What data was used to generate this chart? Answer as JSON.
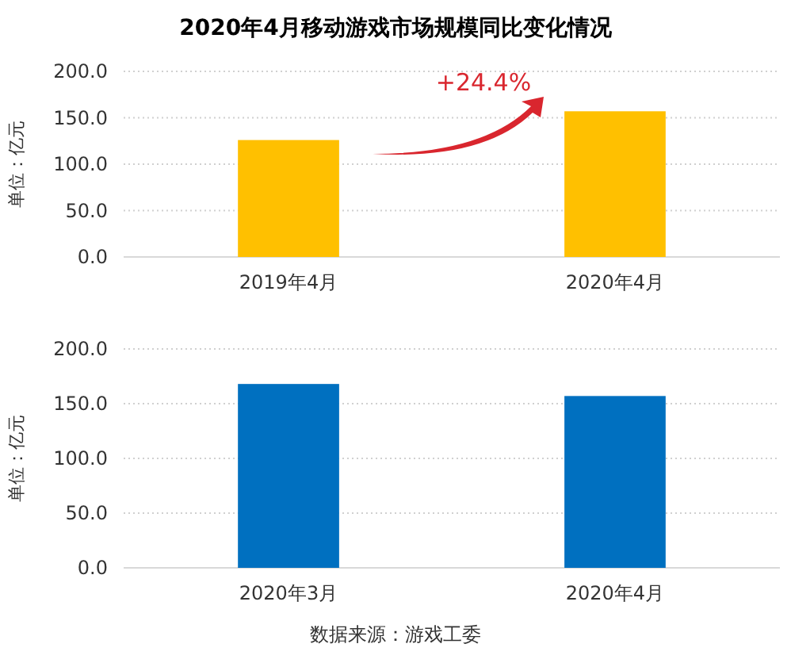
{
  "chart_data": [
    {
      "type": "bar",
      "title": "2020年4月移动游戏市场规模同比变化情况",
      "ylabel": "单位：亿元",
      "categories": [
        "2019年4月",
        "2020年4月"
      ],
      "values": [
        126,
        157
      ],
      "color": "#ffc000",
      "ylim": [
        0,
        200
      ],
      "yticks": [
        {
          "value": 0,
          "label": "0.0"
        },
        {
          "value": 50,
          "label": "50.0"
        },
        {
          "value": 100,
          "label": "100.0"
        },
        {
          "value": 150,
          "label": "150.0"
        },
        {
          "value": 200,
          "label": "200.0"
        }
      ],
      "grid": "y",
      "annotations": [
        "+24.4%"
      ]
    },
    {
      "type": "bar",
      "ylabel": "单位：亿元",
      "categories": [
        "2020年3月",
        "2020年4月"
      ],
      "values": [
        168,
        157
      ],
      "color": "#0070c0",
      "ylim": [
        0,
        200
      ],
      "yticks": [
        {
          "value": 0,
          "label": "0.0"
        },
        {
          "value": 50,
          "label": "50.0"
        },
        {
          "value": 100,
          "label": "100.0"
        },
        {
          "value": 150,
          "label": "150.0"
        },
        {
          "value": 200,
          "label": "200.0"
        }
      ],
      "grid": "y",
      "annotations": [
        "数据来源：游戏工委"
      ]
    }
  ]
}
